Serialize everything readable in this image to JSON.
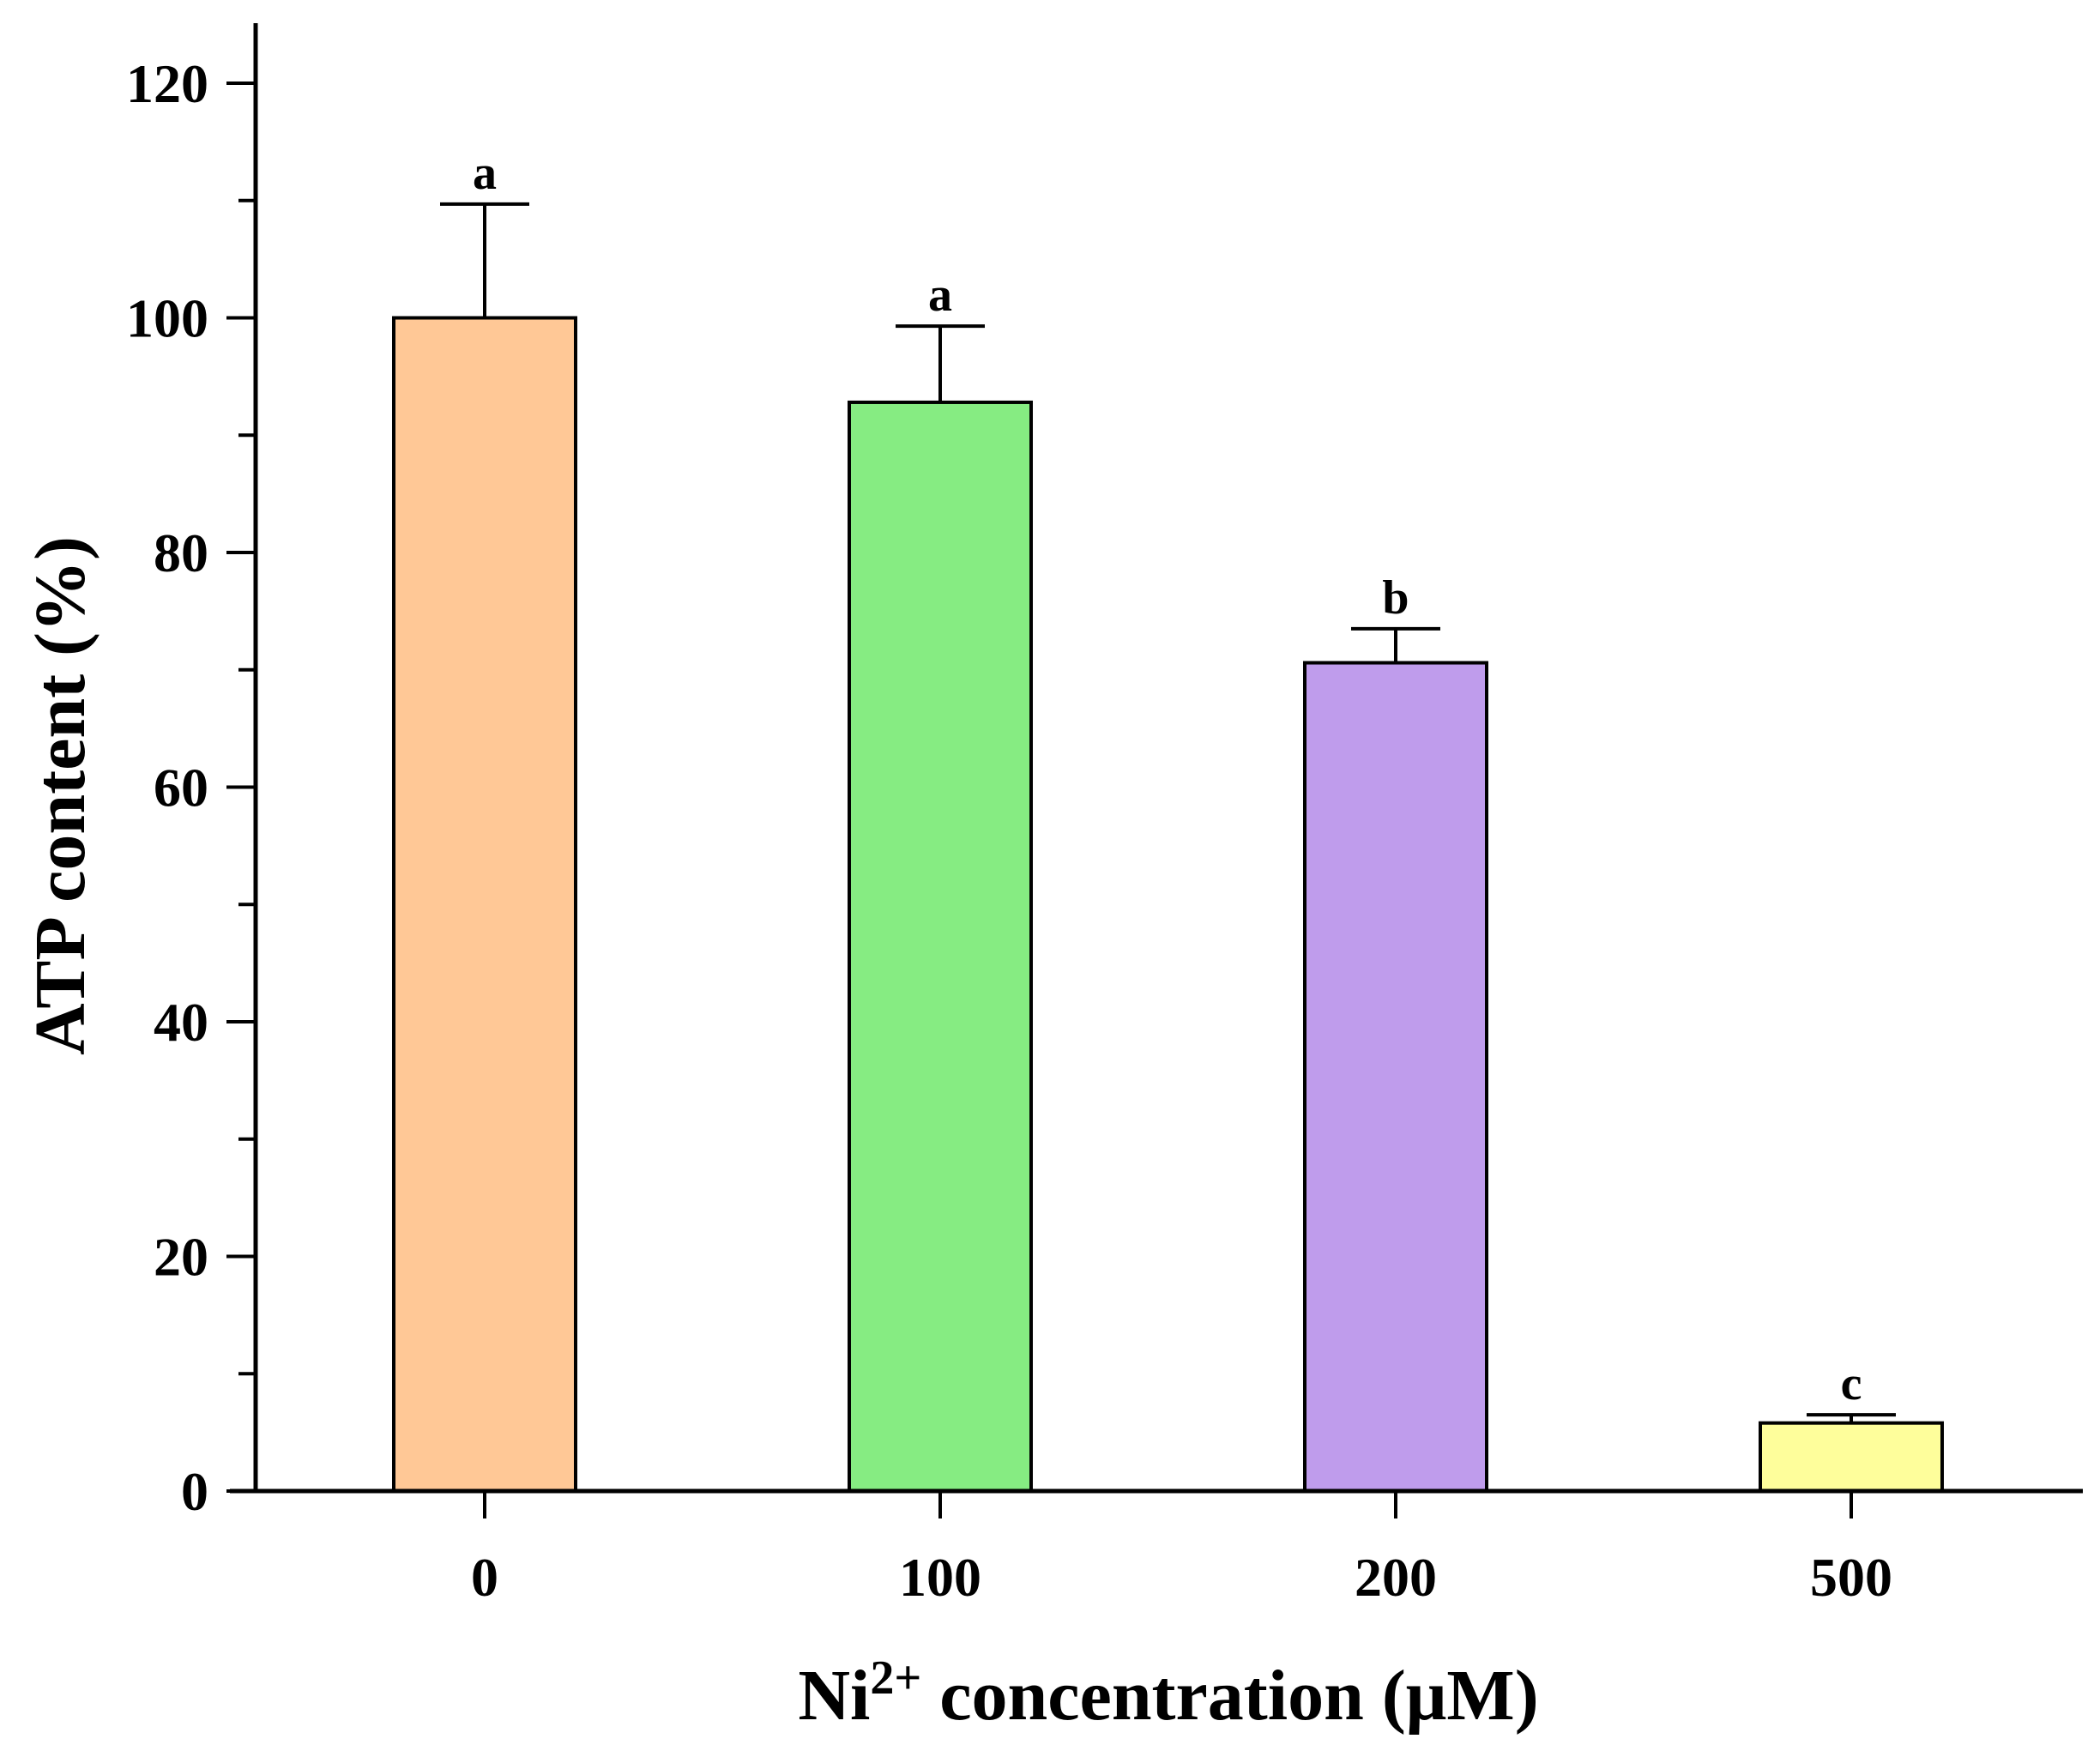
{
  "chart_data": {
    "type": "bar",
    "title": "",
    "xlabel_main": "Ni",
    "xlabel_sup": "2+",
    "xlabel_rest": " concentration (μM)",
    "ylabel": "ATP content (%)",
    "categories": [
      "0",
      "100",
      "200",
      "500"
    ],
    "values": [
      100,
      92.8,
      70.6,
      5.8
    ],
    "errors": [
      9.7,
      6.5,
      2.9,
      0.7
    ],
    "significance": [
      "a",
      "a",
      "b",
      "c"
    ],
    "colors": [
      "#FFC896",
      "#86EC82",
      "#BF9CEC",
      "#FEFE9B"
    ],
    "ylim": [
      0,
      120
    ],
    "yticks": [
      "0",
      "20",
      "40",
      "60",
      "80",
      "100",
      "120"
    ],
    "grid": false
  }
}
